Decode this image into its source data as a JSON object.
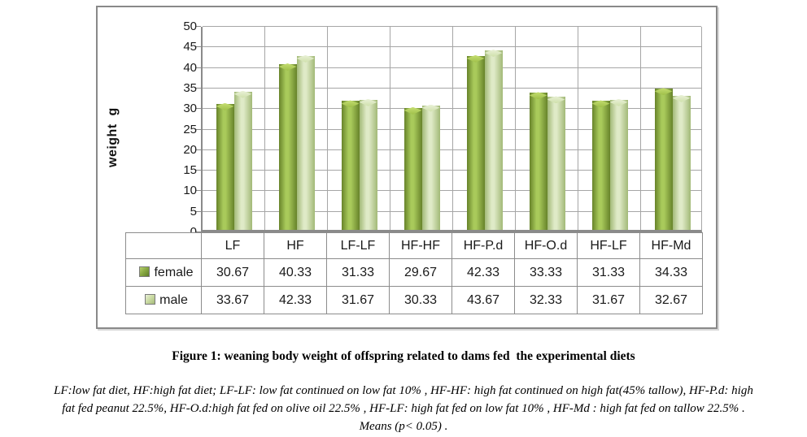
{
  "figure": {
    "caption": "Figure 1: weaning body weight of offspring related to dams fed  the experimental diets",
    "footnote_lines": [
      "LF:low fat diet, HF:high fat diet; LF-LF: low fat continued on low fat 10% , HF-HF: high fat continued on high fat(45% tallow), HF-P.d: high",
      "fat fed peanut  22.5%, HF-O.d:high fat fed on olive oil 22.5% , HF-LF: high fat fed on low fat 10% , HF-Md : high fat fed on tallow 22.5% .",
      "Means (p< 0.05) ."
    ]
  },
  "chart_data": {
    "type": "bar",
    "title": "",
    "xlabel": "",
    "ylabel": "weight  g",
    "categories": [
      "LF",
      "HF",
      "LF-LF",
      "HF-HF",
      "HF-P.d",
      "HF-O.d",
      "HF-LF",
      "HF-Md"
    ],
    "series": [
      {
        "name": "female",
        "values": [
          30.67,
          40.33,
          31.33,
          29.67,
          42.33,
          33.33,
          31.33,
          34.33
        ],
        "fill": {
          "edge": "#67832a",
          "mid": "#a9ca5b",
          "cap_light": "#c6de72",
          "cap_dark": "#9fc04a"
        }
      },
      {
        "name": "male",
        "values": [
          33.67,
          42.33,
          31.67,
          30.33,
          43.67,
          32.33,
          31.67,
          32.67
        ],
        "fill": {
          "edge": "#a2b977",
          "mid": "#dfeac7",
          "cap_light": "#e9f1d8",
          "cap_dark": "#cfe0ab"
        }
      }
    ],
    "ylim": [
      0,
      50
    ],
    "yticks": [
      0,
      5,
      10,
      15,
      20,
      25,
      30,
      35,
      40,
      45,
      50
    ],
    "grid": true,
    "legend_position": "table-left",
    "colors": {
      "grid": "#a6a6a6",
      "axis": "#8a8a8a",
      "frame": "#898989",
      "text": "#1a1a1a"
    }
  }
}
